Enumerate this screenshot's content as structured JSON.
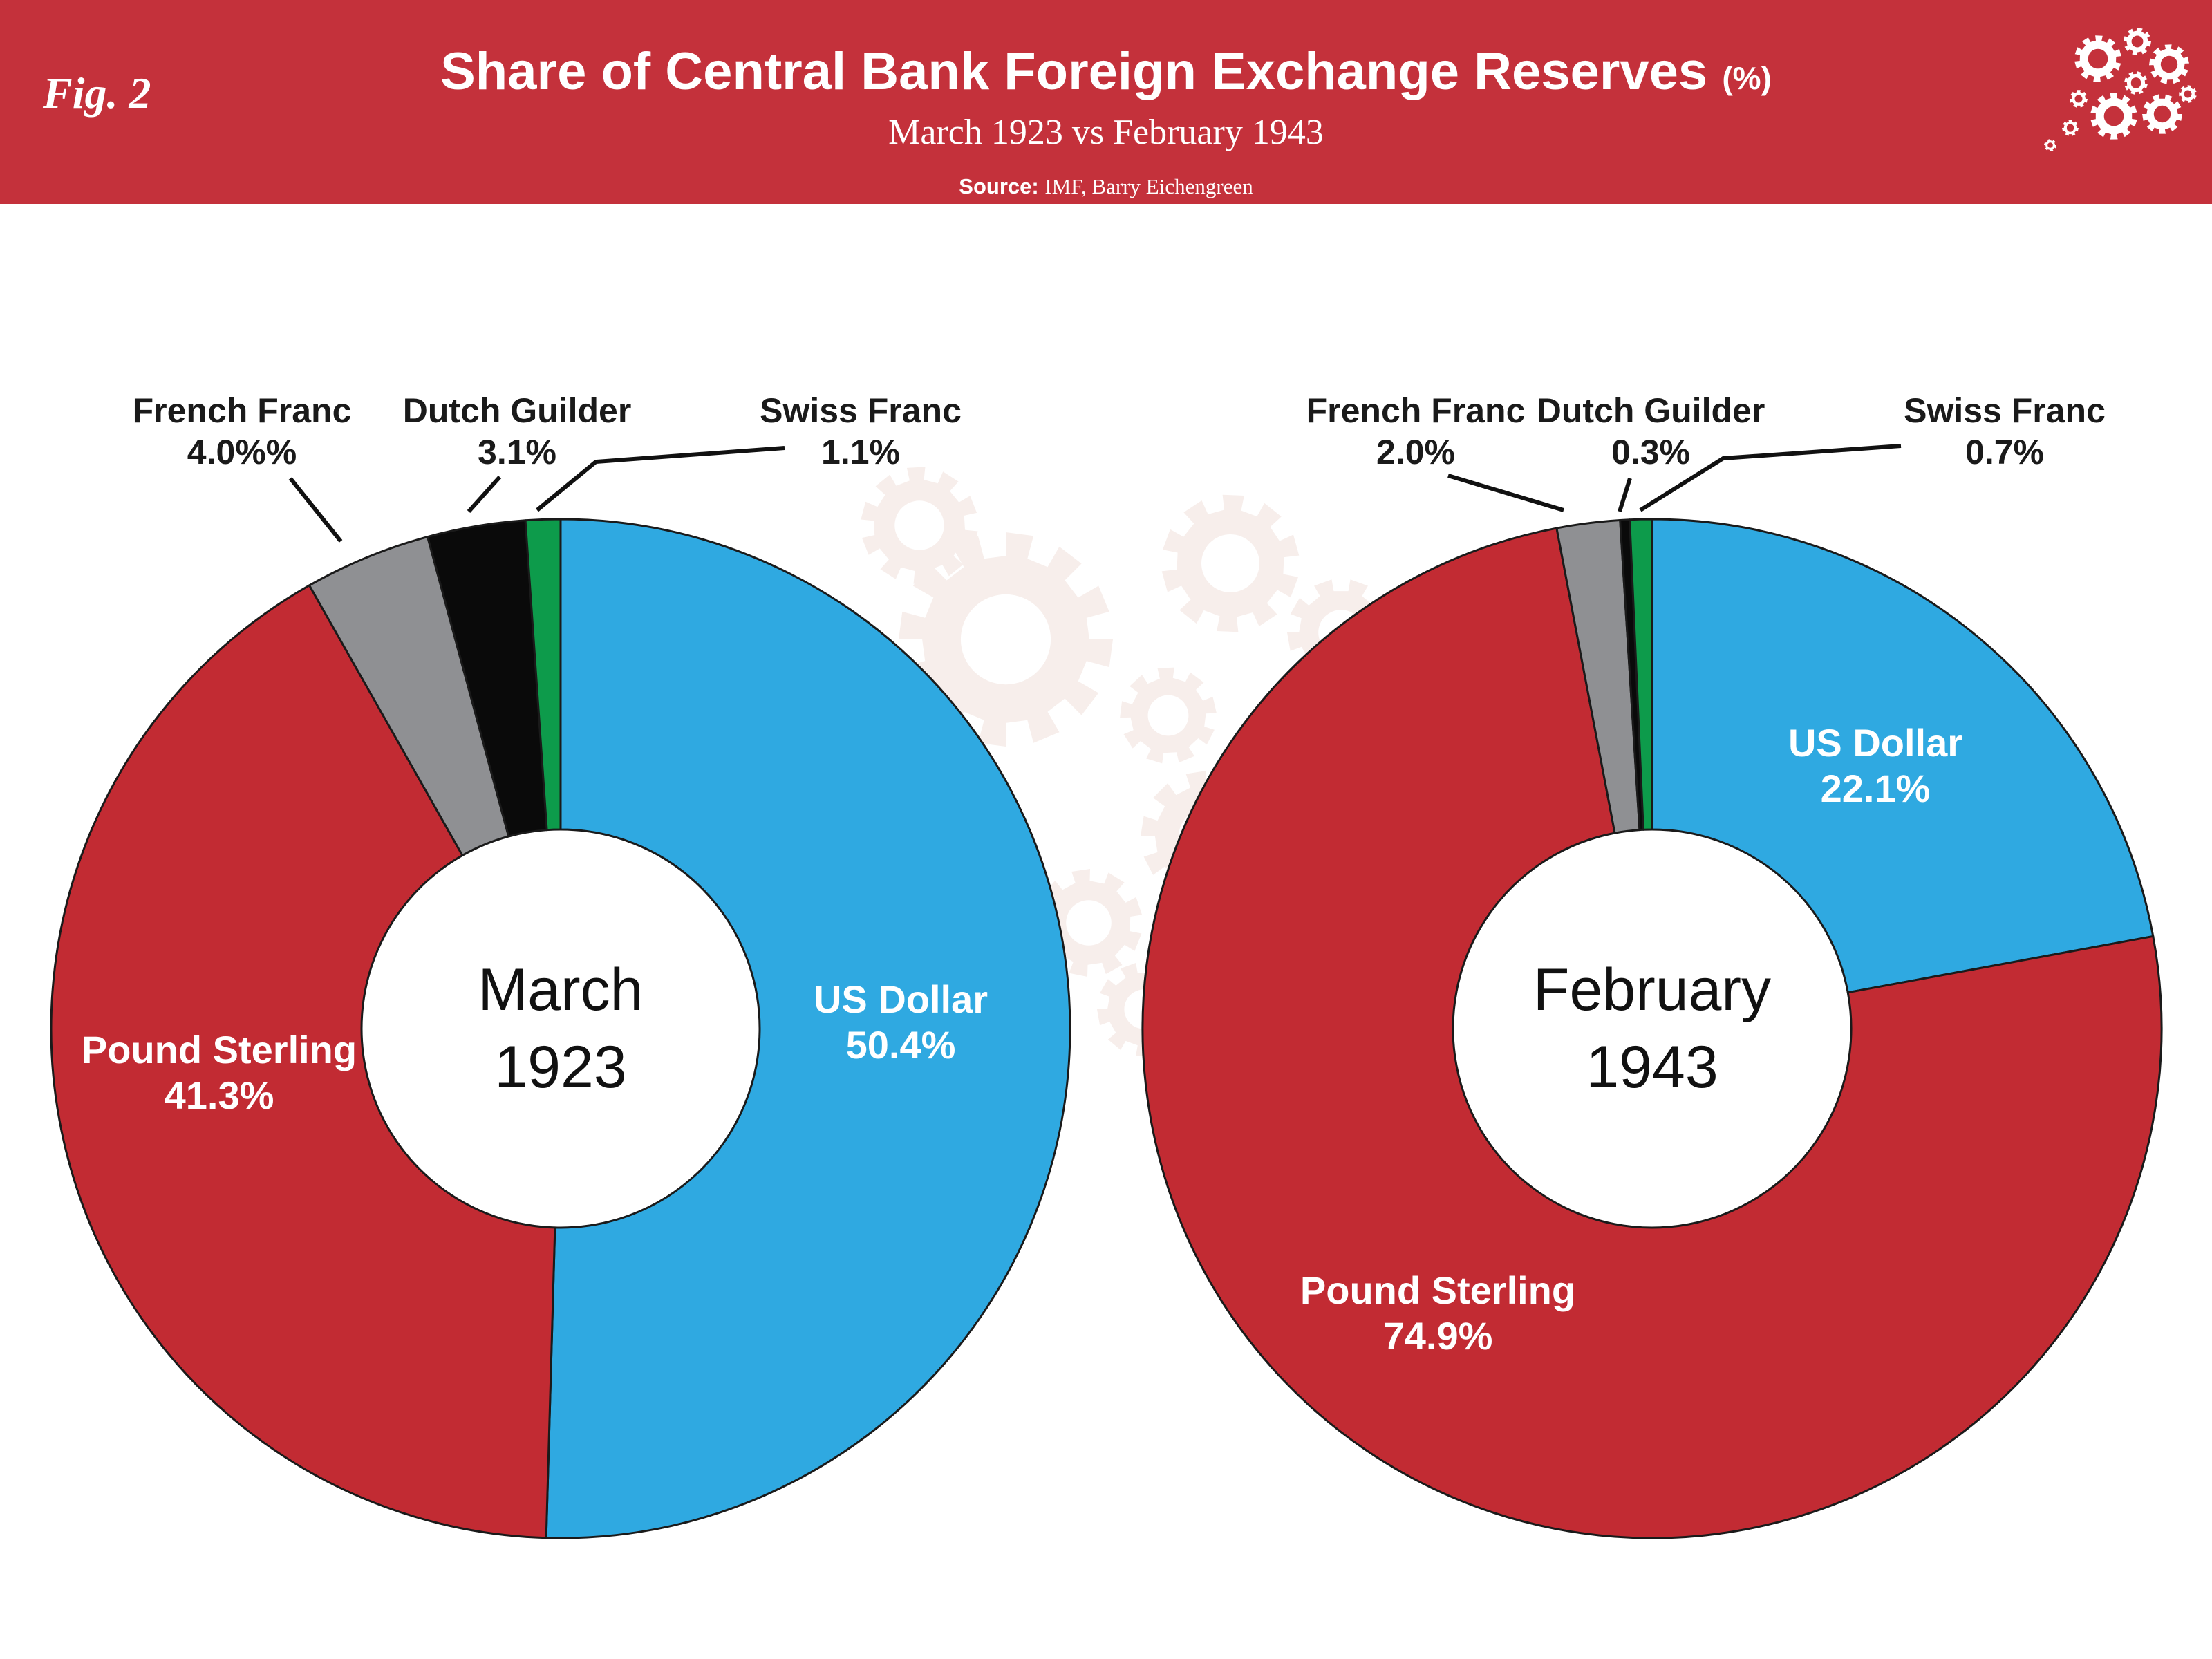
{
  "header": {
    "fig_label": "Fig. 2",
    "title": "Share of Central Bank Foreign Exchange Reserves",
    "title_suffix": "(%)",
    "subtitle": "March 1923 vs February 1943",
    "source_label": "Source:",
    "source_text": "IMF, Barry Eichengreen",
    "band_color": "#c4313b"
  },
  "colors": {
    "us_dollar": "#2fa9e1",
    "pound_sterling": "#c22b33",
    "french_franc": "#8f9093",
    "dutch_guilder": "#0a0a0a",
    "swiss_franc": "#0d9b4b",
    "watermark_gears": "#f7eeeb",
    "header_gears": "#ffffff",
    "slice_outline": "#1a1a1a"
  },
  "chart_data": [
    {
      "type": "pie",
      "subtype": "donut",
      "title": "March 1923",
      "center_label": [
        "March",
        "1923"
      ],
      "categories": [
        "US Dollar",
        "Pound Sterling",
        "French Franc",
        "Dutch Guilder",
        "Swiss Franc"
      ],
      "values": [
        50.4,
        41.3,
        4.0,
        3.1,
        1.1
      ],
      "colors": [
        "#2fa9e1",
        "#c22b33",
        "#8f9093",
        "#0a0a0a",
        "#0d9b4b"
      ],
      "start_angle": "12 o'clock",
      "direction": "clockwise",
      "legend_position": "none",
      "inside_labels": [
        {
          "name": "US Dollar",
          "value": "50.4%"
        },
        {
          "name": "Pound Sterling",
          "value": "41.3%"
        }
      ],
      "callout_labels": [
        {
          "name": "French Franc",
          "value": "4.0%%"
        },
        {
          "name": "Dutch Guilder",
          "value": "3.1%"
        },
        {
          "name": "Swiss Franc",
          "value": "1.1%"
        }
      ]
    },
    {
      "type": "pie",
      "subtype": "donut",
      "title": "February 1943",
      "center_label": [
        "February",
        "1943"
      ],
      "categories": [
        "US Dollar",
        "Pound Sterling",
        "French Franc",
        "Dutch Guilder",
        "Swiss Franc"
      ],
      "values": [
        22.1,
        74.9,
        2.0,
        0.3,
        0.7
      ],
      "colors": [
        "#2fa9e1",
        "#c22b33",
        "#8f9093",
        "#0a0a0a",
        "#0d9b4b"
      ],
      "start_angle": "12 o'clock",
      "direction": "clockwise",
      "legend_position": "none",
      "inside_labels": [
        {
          "name": "US Dollar",
          "value": "22.1%"
        },
        {
          "name": "Pound Sterling",
          "value": "74.9%"
        }
      ],
      "callout_labels": [
        {
          "name": "French Franc",
          "value": "2.0%"
        },
        {
          "name": "Dutch Guilder",
          "value": "0.3%"
        },
        {
          "name": "Swiss Franc",
          "value": "0.7%"
        }
      ]
    }
  ]
}
